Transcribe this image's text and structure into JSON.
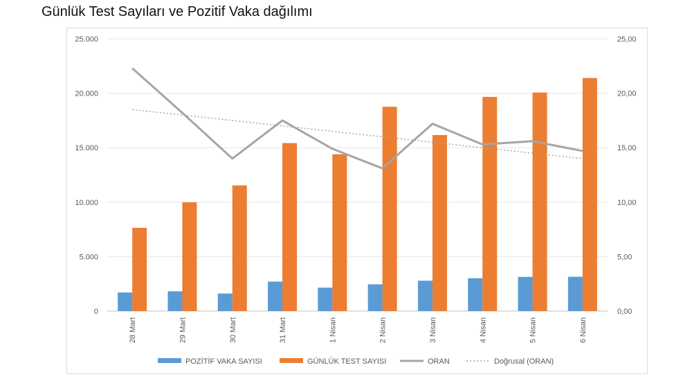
{
  "title": "Günlük Test Sayıları ve Pozitif Vaka dağılımı",
  "chart_data": {
    "type": "bar",
    "categories": [
      "28 Mart",
      "29 Mart",
      "30 Mart",
      "31 Mart",
      "1 Nisan",
      "2 Nisan",
      "3 Nisan",
      "4 Nisan",
      "5 Nisan",
      "6 Nisan"
    ],
    "series": [
      {
        "name": "POZİTİF VAKA SAYISI",
        "type": "bar",
        "axis": "left",
        "color": "#5B9BD5",
        "values": [
          1704,
          1815,
          1610,
          2704,
          2148,
          2456,
          2786,
          3013,
          3135,
          3148
        ]
      },
      {
        "name": "GÜNLÜK TEST SAYISI",
        "type": "bar",
        "axis": "left",
        "color": "#ED7D31",
        "values": [
          7641,
          9982,
          11535,
          15422,
          14396,
          18757,
          16160,
          19664,
          20065,
          21400
        ]
      },
      {
        "name": "ORAN",
        "type": "line",
        "axis": "right",
        "color": "#A5A5A5",
        "values": [
          22.3,
          18.2,
          14.0,
          17.5,
          14.9,
          13.1,
          17.2,
          15.3,
          15.6,
          14.7
        ]
      },
      {
        "name": "Doğrusal (ORAN)",
        "type": "trendline",
        "axis": "right",
        "color": "#A5A5A5",
        "values": [
          18.5,
          18.0,
          17.5,
          17.0,
          16.5,
          16.0,
          15.5,
          15.0,
          14.5,
          14.0
        ]
      }
    ],
    "y_left": {
      "min": 0,
      "max": 25000,
      "ticks": [
        0,
        5000,
        10000,
        15000,
        20000,
        25000
      ],
      "tick_labels": [
        "0",
        "5.000",
        "10.000",
        "15.000",
        "20.000",
        "25.000"
      ]
    },
    "y_right": {
      "min": 0,
      "max": 25,
      "ticks": [
        0,
        5,
        10,
        15,
        20,
        25
      ],
      "tick_labels": [
        "0,00",
        "5,00",
        "10,00",
        "15,00",
        "20,00",
        "25,00"
      ]
    },
    "grid": true,
    "legend_position": "bottom"
  }
}
